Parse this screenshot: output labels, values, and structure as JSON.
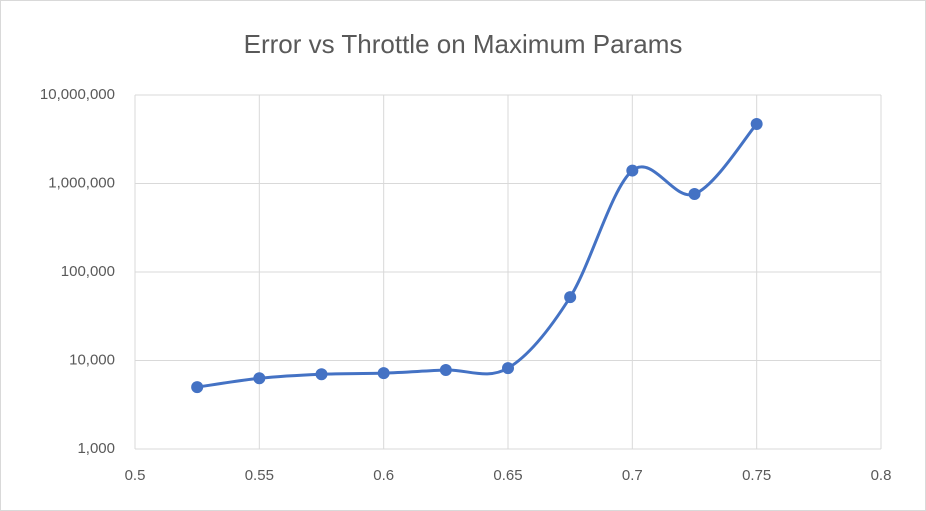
{
  "chart_data": {
    "type": "scatter",
    "title": "Error vs Throttle on Maximum Params",
    "x": [
      0.525,
      0.55,
      0.575,
      0.6,
      0.625,
      0.65,
      0.675,
      0.7,
      0.725,
      0.75
    ],
    "series": [
      {
        "color": "#4472c4",
        "values": [
          5000,
          6300,
          7000,
          7200,
          7800,
          8200,
          52000,
          1400000,
          760000,
          4700000
        ]
      }
    ],
    "xlim": [
      0.5,
      0.8
    ],
    "xticks": [
      0.5,
      0.55,
      0.6,
      0.65,
      0.7,
      0.75,
      0.8
    ],
    "ylim": [
      1000,
      10000000
    ],
    "yticks": [
      {
        "value": 1000,
        "label": "1,000"
      },
      {
        "value": 10000,
        "label": "10,000"
      },
      {
        "value": 100000,
        "label": "100,000"
      },
      {
        "value": 1000000,
        "label": "1,000,000"
      },
      {
        "value": 10000000,
        "label": "10,000,000"
      }
    ],
    "log_y": true,
    "grid": true,
    "smooth": true
  }
}
